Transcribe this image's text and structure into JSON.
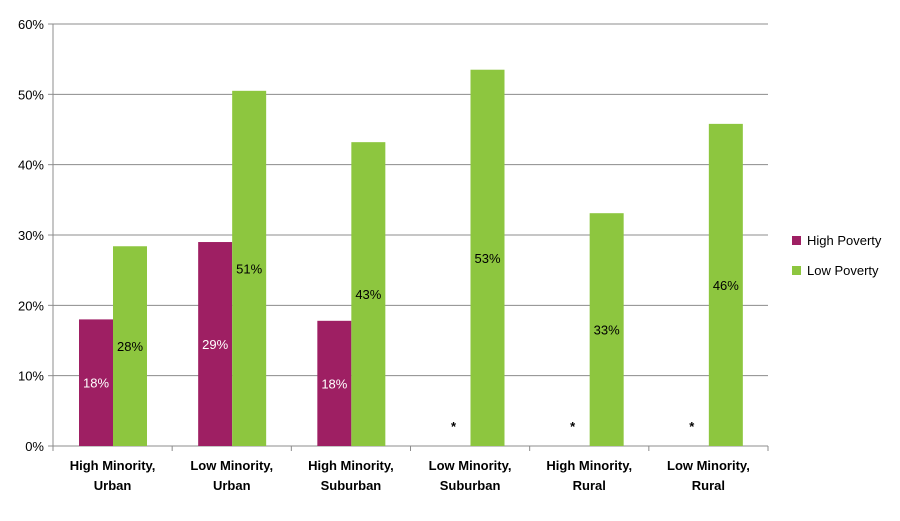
{
  "chart_data": {
    "type": "bar",
    "categories": [
      [
        "High Minority,",
        "Urban"
      ],
      [
        "Low Minority,",
        "Urban"
      ],
      [
        "High Minority,",
        "Suburban"
      ],
      [
        "Low Minority,",
        "Suburban"
      ],
      [
        "High Minority,",
        "Rural"
      ],
      [
        "Low Minority,",
        "Rural"
      ]
    ],
    "series": [
      {
        "name": "High Poverty",
        "color": "#9E1F63",
        "label_color": "#FFFFFF",
        "values": [
          18,
          29,
          17.8,
          null,
          null,
          null
        ],
        "labels": [
          "18%",
          "29%",
          "18%",
          "*",
          "*",
          "*"
        ]
      },
      {
        "name": "Low Poverty",
        "color": "#8DC63F",
        "label_color": "#000000",
        "values": [
          28.4,
          50.5,
          43.2,
          53.5,
          33.1,
          45.8
        ],
        "labels": [
          "28%",
          "51%",
          "43%",
          "53%",
          "33%",
          "46%"
        ]
      }
    ],
    "ylim": [
      0,
      60
    ],
    "yticks": [
      "0%",
      "10%",
      "20%",
      "30%",
      "40%",
      "50%",
      "60%"
    ],
    "grid": true,
    "legend": "right",
    "title": "",
    "xlabel": "",
    "ylabel": ""
  }
}
